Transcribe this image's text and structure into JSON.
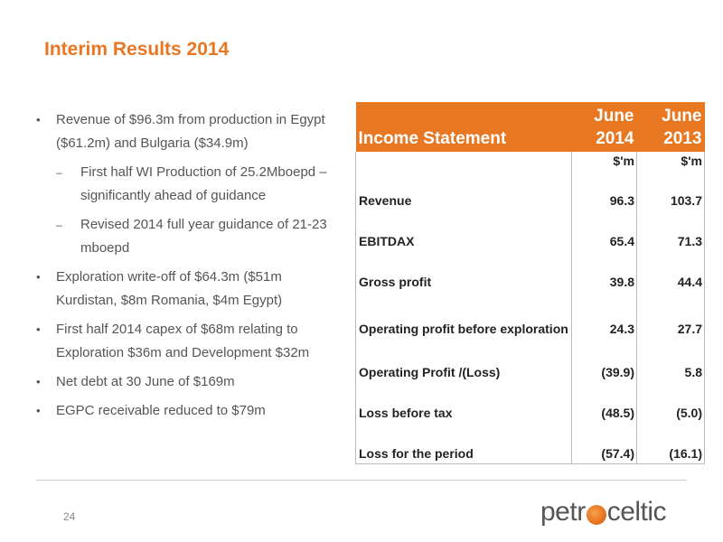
{
  "slide": {
    "title": "Interim Results 2014",
    "page_number": "24"
  },
  "bullets": [
    {
      "level": 1,
      "marker": "•",
      "text": "Revenue of $96.3m from production in Egypt ($61.2m) and Bulgaria ($34.9m)"
    },
    {
      "level": 2,
      "marker": "–",
      "text": "First half WI Production of 25.2Mboepd – significantly ahead of guidance"
    },
    {
      "level": 2,
      "marker": "–",
      "text": "Revised 2014 full year guidance of 21-23 mboepd"
    },
    {
      "level": 1,
      "marker": "•",
      "text": "Exploration write-off of $64.3m ($51m Kurdistan, $8m Romania, $4m Egypt)"
    },
    {
      "level": 1,
      "marker": "•",
      "text": "First half 2014 capex of $68m relating to Exploration $36m and Development $32m"
    },
    {
      "level": 1,
      "marker": "•",
      "text": "Net debt at 30 June of $169m"
    },
    {
      "level": 1,
      "marker": "•",
      "text": "EGPC receivable reduced to $79m"
    }
  ],
  "table": {
    "header": {
      "label": "Income Statement",
      "col1": "June 2014",
      "col2": "June 2013"
    },
    "units": {
      "col1": "$'m",
      "col2": "$'m"
    },
    "rows": [
      {
        "label": "Revenue",
        "v2014": "96.3",
        "v2013": "103.7"
      },
      {
        "label": "EBITDAX",
        "v2014": "65.4",
        "v2013": "71.3"
      },
      {
        "label": "Gross profit",
        "v2014": "39.8",
        "v2013": "44.4"
      },
      {
        "label": "Operating profit before exploration",
        "v2014": "24.3",
        "v2013": "27.7"
      },
      {
        "label": "Operating Profit /(Loss)",
        "v2014": "(39.9)",
        "v2013": "5.8"
      },
      {
        "label": "Loss before tax",
        "v2014": "(48.5)",
        "v2013": "(5.0)"
      },
      {
        "label": "Loss for the period",
        "v2014": "(57.4)",
        "v2013": "(16.1)"
      }
    ]
  },
  "logo": {
    "text_before": "petr",
    "text_after": "celtic",
    "accent_color": "#e87722"
  },
  "colors": {
    "accent": "#e87722",
    "body_text": "#555555"
  }
}
